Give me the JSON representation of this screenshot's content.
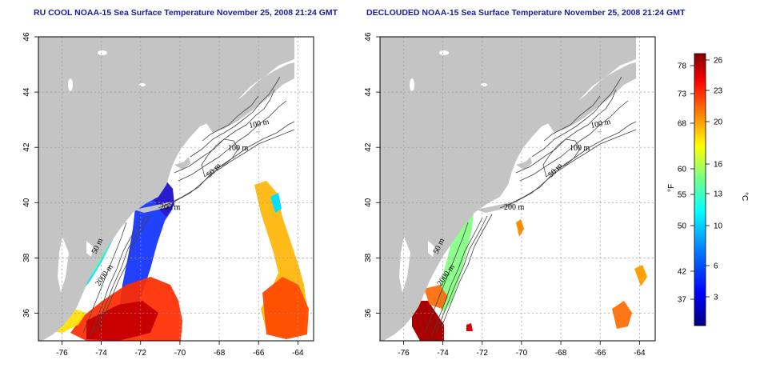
{
  "panels": [
    {
      "id": "left",
      "title": "RU COOL NOAA-15 Sea Surface Temperature November 25, 2008 21:24 GMT"
    },
    {
      "id": "right",
      "title": "DECLOUDED NOAA-15 Sea Surface Temperature November 25, 2008 21:24 GMT"
    }
  ],
  "axes": {
    "lon_ticks": [
      "-76",
      "-74",
      "-72",
      "-70",
      "-68",
      "-66",
      "-64"
    ],
    "lat_ticks": [
      "36",
      "38",
      "40",
      "42",
      "44",
      "46"
    ],
    "lon_range": [
      -77.2,
      -63.2
    ],
    "lat_range": [
      35.0,
      46.0
    ],
    "grid": "dotted"
  },
  "contour_labels": [
    "100 m",
    "100 m",
    "50 m",
    "200 m",
    "50 m",
    "2000 m"
  ],
  "colorbar": {
    "fahrenheit_label": "°F",
    "celsius_label": "°C",
    "fahrenheit_ticks": [
      "78",
      "73",
      "68",
      "60",
      "55",
      "50",
      "42",
      "37"
    ],
    "celsius_ticks": [
      "26",
      "23",
      "20",
      "16",
      "13",
      "10",
      "6",
      "3"
    ],
    "colors": [
      "#00007f",
      "#0000ff",
      "#007fff",
      "#00ffff",
      "#7fff7f",
      "#ffff00",
      "#ff7f00",
      "#ff0000",
      "#7f0000"
    ]
  },
  "colors": {
    "land": "#c4c4c4",
    "title": "#1a1aa8",
    "contour": "#444444"
  }
}
